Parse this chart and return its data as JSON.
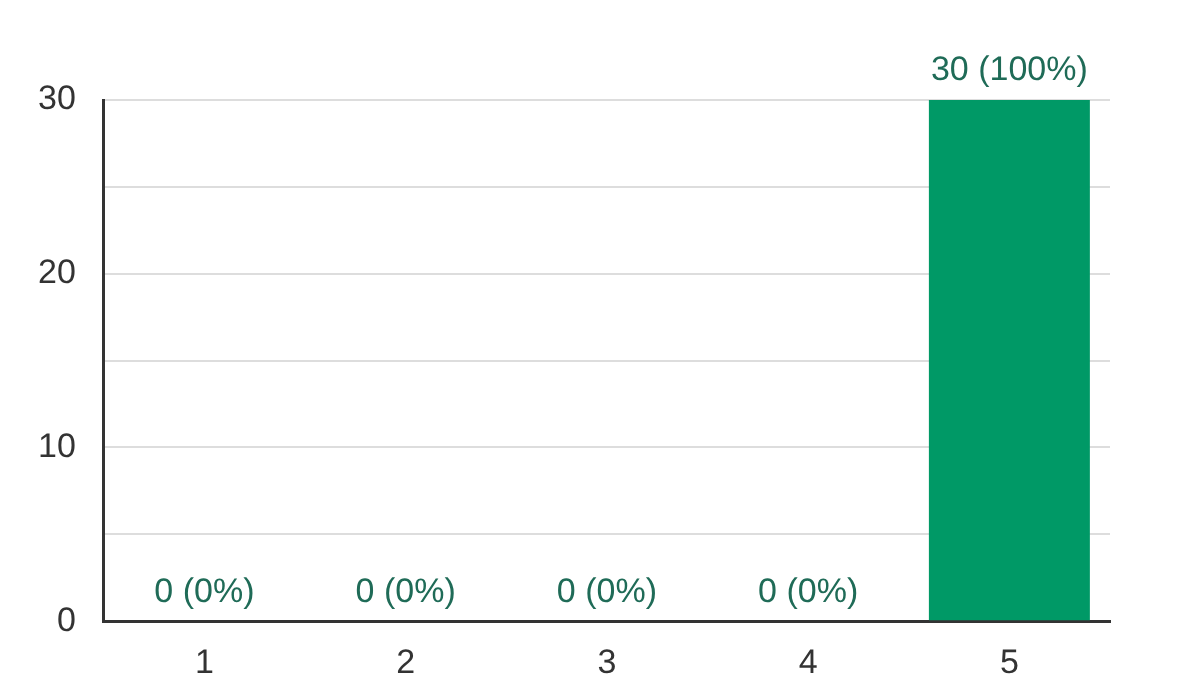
{
  "chart_data": {
    "type": "bar",
    "categories": [
      "1",
      "2",
      "3",
      "4",
      "5"
    ],
    "values": [
      0,
      0,
      0,
      0,
      30
    ],
    "value_labels": [
      "0 (0%)",
      "0 (0%)",
      "0 (0%)",
      "0 (0%)",
      "30 (100%)"
    ],
    "color": "#009966",
    "ylim": [
      0,
      30
    ],
    "yticks": [
      0,
      {
        "value": 5,
        "label": null
      },
      10,
      {
        "value": 15,
        "label": null
      },
      20,
      {
        "value": 25,
        "label": null
      },
      30
    ],
    "grid": "y",
    "legend": false
  }
}
